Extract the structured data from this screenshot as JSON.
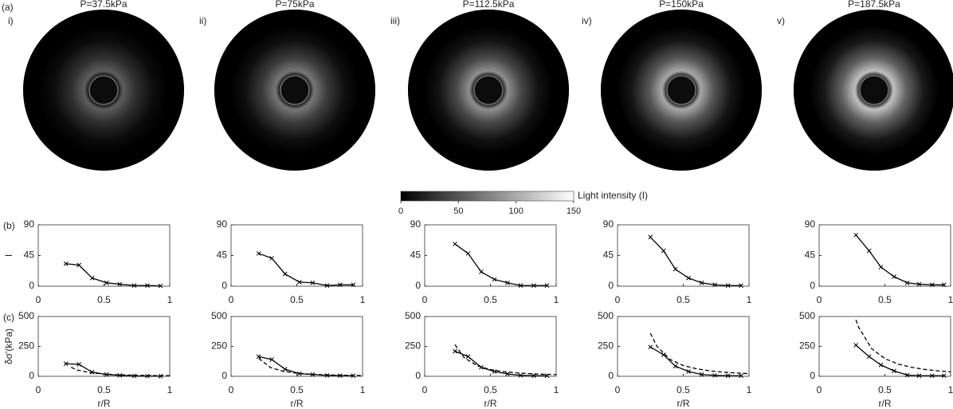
{
  "panel_label": "(a)",
  "images": [
    {
      "label": "i)",
      "title": "P=37.5kPa"
    },
    {
      "label": "ii)",
      "title": "P=75kPa"
    },
    {
      "label": "iii)",
      "title": "P=112.5kPa"
    },
    {
      "label": "iv)",
      "title": "P=150kPa"
    },
    {
      "label": "v)",
      "title": "P=187.5kPa"
    }
  ],
  "colorbar": {
    "label": "Light intensity (I)",
    "lim": [
      0,
      150
    ],
    "ticks": [
      0,
      50,
      100,
      150
    ]
  },
  "chart_data": [
    {
      "type": "line",
      "panel_label": "(b)",
      "ylabel": "I",
      "xlim": [
        0,
        1
      ],
      "xticks": [
        0,
        0.5,
        1
      ],
      "ylim": [
        0,
        90
      ],
      "yticks": [
        0,
        45,
        90
      ],
      "series": [
        {
          "color": "#000",
          "marker": "x",
          "x": [
            0.21,
            0.31,
            0.41,
            0.52,
            0.62,
            0.73,
            0.83,
            0.93
          ],
          "values": [
            33,
            31,
            12,
            5,
            3,
            1,
            1,
            0.5
          ]
        }
      ]
    },
    {
      "type": "line",
      "xlim": [
        0,
        1
      ],
      "xticks": [
        0,
        0.5,
        1
      ],
      "ylim": [
        0,
        90
      ],
      "yticks": [
        0,
        45,
        90
      ],
      "series": [
        {
          "color": "#000",
          "marker": "x",
          "x": [
            0.21,
            0.31,
            0.41,
            0.52,
            0.62,
            0.73,
            0.83,
            0.93
          ],
          "values": [
            48,
            41,
            18,
            6,
            5,
            1,
            2,
            2
          ]
        }
      ]
    },
    {
      "type": "line",
      "xlim": [
        0,
        1
      ],
      "xticks": [
        0,
        0.5,
        1
      ],
      "ylim": [
        0,
        90
      ],
      "yticks": [
        0,
        45,
        90
      ],
      "series": [
        {
          "color": "#000",
          "marker": "x",
          "x": [
            0.23,
            0.33,
            0.43,
            0.53,
            0.63,
            0.73,
            0.83,
            0.93
          ],
          "values": [
            62,
            48,
            21,
            10,
            5,
            1,
            1,
            1
          ]
        }
      ]
    },
    {
      "type": "line",
      "xlim": [
        0,
        1
      ],
      "xticks": [
        0,
        0.5,
        1
      ],
      "ylim": [
        0,
        90
      ],
      "yticks": [
        0,
        45,
        90
      ],
      "series": [
        {
          "color": "#000",
          "marker": "x",
          "x": [
            0.25,
            0.35,
            0.44,
            0.54,
            0.64,
            0.74,
            0.84,
            0.94
          ],
          "values": [
            72,
            52,
            25,
            12,
            5,
            2,
            1,
            1
          ]
        }
      ]
    },
    {
      "type": "line",
      "xlim": [
        0,
        1
      ],
      "xticks": [
        0,
        0.5,
        1
      ],
      "ylim": [
        0,
        90
      ],
      "yticks": [
        0,
        45,
        90
      ],
      "series": [
        {
          "color": "#000",
          "marker": "x",
          "x": [
            0.28,
            0.38,
            0.47,
            0.57,
            0.67,
            0.76,
            0.86,
            0.95
          ],
          "values": [
            75,
            52,
            28,
            14,
            5,
            3,
            2,
            2
          ]
        }
      ]
    },
    {
      "type": "line",
      "panel_label": "(c)",
      "ylabel": "δσ'(kPa)",
      "xlabel": "r/R",
      "xlim": [
        0,
        1
      ],
      "xticks": [
        0,
        0.5,
        1
      ],
      "ylim": [
        0,
        500
      ],
      "yticks": [
        0,
        250,
        500
      ],
      "series": [
        {
          "color": "#000",
          "marker": "x",
          "x": [
            0.21,
            0.31,
            0.41,
            0.52,
            0.62,
            0.73,
            0.83,
            0.93
          ],
          "values": [
            105,
            100,
            35,
            15,
            8,
            3,
            2,
            1
          ]
        },
        {
          "color": "#000",
          "dashed": true,
          "x": [
            0.25,
            0.3,
            0.4,
            0.5,
            0.6,
            0.7,
            0.8,
            0.9,
            1.0
          ],
          "values": [
            75,
            52,
            29,
            19,
            13,
            10,
            7,
            6,
            5
          ]
        }
      ]
    },
    {
      "type": "line",
      "xlabel": "r/R",
      "xlim": [
        0,
        1
      ],
      "xticks": [
        0,
        0.5,
        1
      ],
      "ylim": [
        0,
        500
      ],
      "yticks": [
        0,
        250,
        500
      ],
      "series": [
        {
          "color": "#000",
          "marker": "x",
          "x": [
            0.21,
            0.31,
            0.41,
            0.52,
            0.62,
            0.73,
            0.83,
            0.93
          ],
          "values": [
            165,
            140,
            60,
            22,
            15,
            8,
            6,
            5
          ]
        },
        {
          "color": "#000",
          "dashed": true,
          "x": [
            0.21,
            0.3,
            0.4,
            0.5,
            0.6,
            0.7,
            0.8,
            0.9,
            1.0
          ],
          "values": [
            150,
            73,
            41,
            26,
            18,
            13,
            10,
            8,
            7
          ]
        }
      ]
    },
    {
      "type": "line",
      "xlabel": "r/R",
      "xlim": [
        0,
        1
      ],
      "xticks": [
        0,
        0.5,
        1
      ],
      "ylim": [
        0,
        500
      ],
      "yticks": [
        0,
        250,
        500
      ],
      "series": [
        {
          "color": "#000",
          "marker": "x",
          "x": [
            0.23,
            0.33,
            0.43,
            0.53,
            0.63,
            0.73,
            0.83,
            0.93
          ],
          "values": [
            210,
            165,
            75,
            40,
            20,
            8,
            5,
            5
          ]
        },
        {
          "color": "#000",
          "dashed": true,
          "x": [
            0.23,
            0.3,
            0.4,
            0.5,
            0.6,
            0.7,
            0.8,
            0.9,
            1.0
          ],
          "values": [
            265,
            156,
            88,
            56,
            39,
            29,
            22,
            17,
            14
          ]
        }
      ]
    },
    {
      "type": "line",
      "xlabel": "r/R",
      "xlim": [
        0,
        1
      ],
      "xticks": [
        0,
        0.5,
        1
      ],
      "ylim": [
        0,
        500
      ],
      "yticks": [
        0,
        250,
        500
      ],
      "series": [
        {
          "color": "#000",
          "marker": "x",
          "x": [
            0.25,
            0.35,
            0.44,
            0.54,
            0.64,
            0.74,
            0.84,
            0.94
          ],
          "values": [
            245,
            180,
            85,
            40,
            15,
            8,
            5,
            5
          ]
        },
        {
          "color": "#000",
          "dashed": true,
          "x": [
            0.25,
            0.3,
            0.4,
            0.5,
            0.6,
            0.7,
            0.8,
            0.9,
            1.0
          ],
          "values": [
            360,
            250,
            141,
            90,
            63,
            46,
            35,
            28,
            22
          ]
        }
      ]
    },
    {
      "type": "line",
      "xlabel": "r/R",
      "xlim": [
        0,
        1
      ],
      "xticks": [
        0,
        0.5,
        1
      ],
      "ylim": [
        0,
        500
      ],
      "yticks": [
        0,
        250,
        500
      ],
      "series": [
        {
          "color": "#000",
          "marker": "x",
          "x": [
            0.28,
            0.38,
            0.47,
            0.57,
            0.67,
            0.76,
            0.86,
            0.95
          ],
          "values": [
            260,
            165,
            95,
            45,
            10,
            5,
            5,
            5
          ]
        },
        {
          "color": "#000",
          "dashed": true,
          "x": [
            0.28,
            0.3,
            0.4,
            0.5,
            0.6,
            0.7,
            0.8,
            0.9,
            1.0
          ],
          "values": [
            472,
            411,
            231,
            148,
            103,
            76,
            58,
            46,
            37
          ]
        }
      ]
    }
  ]
}
